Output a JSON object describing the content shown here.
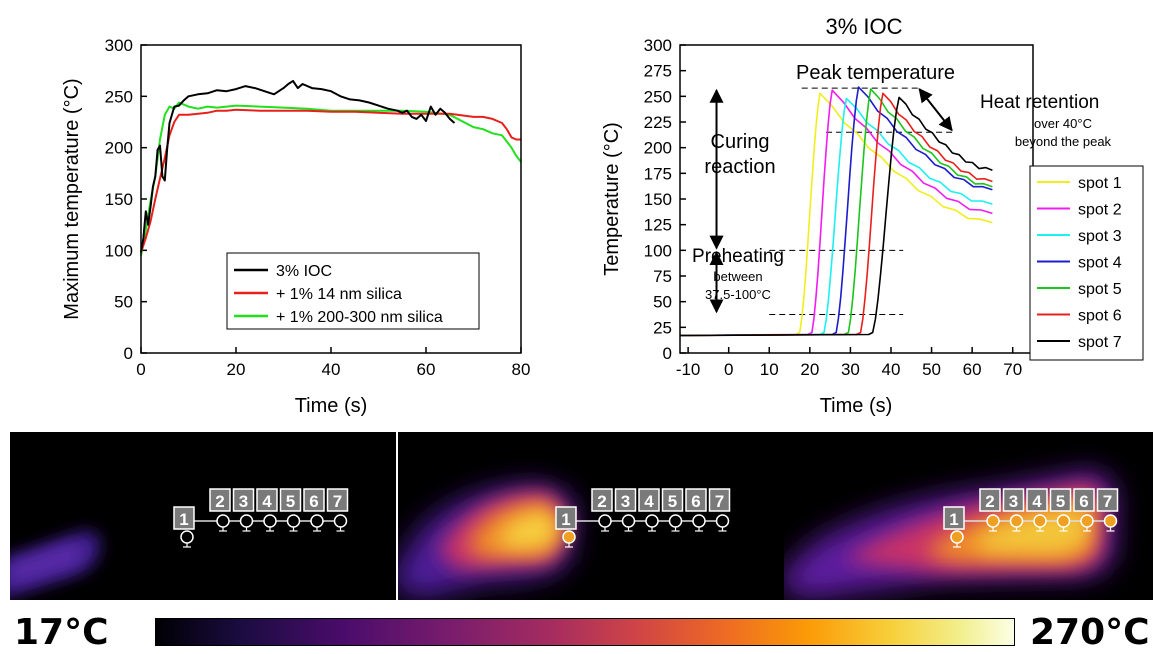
{
  "chart_data": [
    {
      "type": "line",
      "title": "",
      "xlabel": "Time (s)",
      "ylabel": "Maximum temperature (°C)",
      "xlim": [
        0,
        80
      ],
      "ylim": [
        0,
        300
      ],
      "xticks": [
        "0",
        "20",
        "40",
        "60",
        "80"
      ],
      "yticks": [
        "0",
        "50",
        "100",
        "150",
        "200",
        "250",
        "300"
      ],
      "grid": false,
      "legend": "bottom-center",
      "series": [
        {
          "name": "3% IOC",
          "color": "#000000",
          "x": [
            0,
            0.5,
            1,
            1.5,
            2,
            2.5,
            3,
            3.5,
            4,
            4.5,
            5,
            5.5,
            6,
            7,
            8,
            9,
            10,
            12,
            14,
            16,
            18,
            20,
            22,
            24,
            26,
            28,
            30,
            31,
            32,
            33,
            34,
            36,
            38,
            40,
            42,
            44,
            46,
            48,
            50,
            52,
            54,
            55,
            56,
            57,
            58,
            59,
            60,
            61,
            62,
            63,
            64,
            65,
            66
          ],
          "y": [
            98,
            112,
            138,
            125,
            142,
            162,
            172,
            198,
            202,
            172,
            168,
            198,
            224,
            240,
            241,
            246,
            250,
            252,
            253,
            256,
            255,
            257,
            260,
            258,
            255,
            252,
            258,
            262,
            265,
            258,
            262,
            258,
            257,
            255,
            250,
            247,
            246,
            244,
            241,
            238,
            236,
            234,
            236,
            230,
            228,
            232,
            226,
            240,
            232,
            238,
            234,
            228,
            224
          ]
        },
        {
          "name": "+ 1% 14 nm silica",
          "color": "#e8201c",
          "x": [
            0,
            1,
            2,
            3,
            4,
            5,
            6,
            7,
            8,
            10,
            12,
            14,
            16,
            18,
            20,
            25,
            30,
            35,
            40,
            45,
            50,
            55,
            60,
            65,
            70,
            72,
            74,
            76,
            77,
            78,
            79,
            80
          ],
          "y": [
            98,
            112,
            128,
            150,
            170,
            190,
            212,
            225,
            232,
            232,
            233,
            234,
            236,
            236,
            237,
            236,
            236,
            236,
            235,
            235,
            234,
            233,
            233,
            233,
            230,
            230,
            228,
            224,
            218,
            210,
            208,
            208
          ]
        },
        {
          "name": "+ 1% 200-300 nm silica",
          "color": "#22e01c",
          "x": [
            0,
            1,
            2,
            3,
            4,
            5,
            6,
            7,
            8,
            10,
            12,
            14,
            16,
            18,
            20,
            25,
            30,
            35,
            40,
            45,
            50,
            55,
            60,
            65,
            70,
            72,
            74,
            76,
            77,
            78,
            79,
            80
          ],
          "y": [
            95,
            120,
            148,
            172,
            208,
            232,
            240,
            238,
            244,
            240,
            238,
            240,
            239,
            240,
            241,
            240,
            239,
            238,
            236,
            236,
            236,
            236,
            235,
            232,
            220,
            218,
            214,
            212,
            206,
            200,
            192,
            186
          ]
        }
      ]
    },
    {
      "type": "line",
      "title": "3% IOC",
      "xlabel": "Time (s)",
      "ylabel": "Temperature (°C)",
      "xlim": [
        -12,
        75
      ],
      "ylim": [
        0,
        300
      ],
      "xticks": [
        "-10",
        "0",
        "10",
        "20",
        "30",
        "40",
        "50",
        "60",
        "70"
      ],
      "yticks": [
        "0",
        "25",
        "50",
        "75",
        "100",
        "125",
        "150",
        "175",
        "200",
        "225",
        "250",
        "275",
        "300"
      ],
      "grid": false,
      "legend": "right",
      "annotations": {
        "peak": "Peak temperature",
        "retention": "Heat retention",
        "retention_sub1": "over 40°C",
        "retention_sub2": "beyond the peak",
        "curing1": "Curing",
        "curing2": "reaction",
        "preheat": "Preheating",
        "preheat_sub1": "between",
        "preheat_sub2": "37.5-100°C"
      },
      "series": [
        {
          "name": "spot 1",
          "color": "#f0ee1c",
          "start": 17.5,
          "rise_end": 22.5,
          "peak": 253,
          "end": 127
        },
        {
          "name": "spot 2",
          "color": "#f01cf0",
          "start": 20.5,
          "rise_end": 25.5,
          "peak": 256,
          "end": 136
        },
        {
          "name": "spot 3",
          "color": "#1cf0f0",
          "start": 23.5,
          "rise_end": 29,
          "peak": 248,
          "end": 145
        },
        {
          "name": "spot 4",
          "color": "#1c1ccc",
          "start": 26.5,
          "rise_end": 32,
          "peak": 259,
          "end": 159
        },
        {
          "name": "spot 5",
          "color": "#1cc41c",
          "start": 29.5,
          "rise_end": 35,
          "peak": 257,
          "end": 162
        },
        {
          "name": "spot 6",
          "color": "#e8201c",
          "start": 32.5,
          "rise_end": 38,
          "peak": 253,
          "end": 167
        },
        {
          "name": "spot 7",
          "color": "#000000",
          "start": 35.5,
          "rise_end": 42,
          "peak": 249,
          "end": 178
        }
      ]
    }
  ],
  "thermal": {
    "spot_labels": [
      "1",
      "2",
      "3",
      "4",
      "5",
      "6",
      "7"
    ],
    "min_label": "17°C",
    "max_label": "270°C"
  }
}
